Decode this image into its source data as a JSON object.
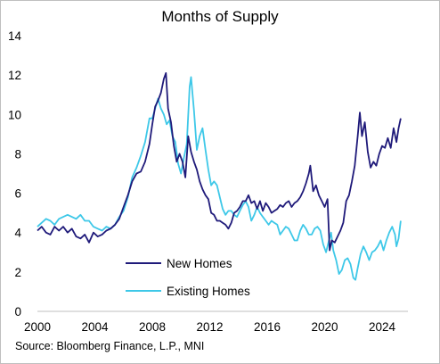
{
  "chart_data": {
    "type": "line",
    "title": "Months of Supply",
    "xlabel": "",
    "ylabel": "",
    "xlim": [
      2000,
      2025.8
    ],
    "ylim": [
      0,
      14
    ],
    "x_ticks": [
      2000,
      2004,
      2008,
      2012,
      2016,
      2020,
      2024
    ],
    "y_ticks": [
      0,
      2,
      4,
      6,
      8,
      10,
      12,
      14
    ],
    "grid": "none",
    "legend_position": "center-left, lower half",
    "source": "Source: Bloomberg Finance, L.P., MNI",
    "series": [
      {
        "name": "New Homes",
        "color": "#1f1a7a",
        "points": [
          [
            2000.0,
            4.1
          ],
          [
            2000.3,
            4.3
          ],
          [
            2000.6,
            4.0
          ],
          [
            2000.9,
            3.9
          ],
          [
            2001.2,
            4.3
          ],
          [
            2001.5,
            4.1
          ],
          [
            2001.8,
            4.3
          ],
          [
            2002.1,
            4.0
          ],
          [
            2002.4,
            4.2
          ],
          [
            2002.7,
            3.8
          ],
          [
            2003.0,
            3.7
          ],
          [
            2003.3,
            3.9
          ],
          [
            2003.6,
            3.5
          ],
          [
            2003.9,
            4.0
          ],
          [
            2004.2,
            3.8
          ],
          [
            2004.5,
            3.9
          ],
          [
            2004.8,
            4.1
          ],
          [
            2005.1,
            4.2
          ],
          [
            2005.4,
            4.4
          ],
          [
            2005.7,
            4.7
          ],
          [
            2006.0,
            5.3
          ],
          [
            2006.3,
            5.9
          ],
          [
            2006.6,
            6.6
          ],
          [
            2006.9,
            7.0
          ],
          [
            2007.2,
            7.1
          ],
          [
            2007.5,
            7.6
          ],
          [
            2007.8,
            8.5
          ],
          [
            2008.0,
            9.5
          ],
          [
            2008.2,
            10.4
          ],
          [
            2008.4,
            10.7
          ],
          [
            2008.6,
            11.1
          ],
          [
            2008.8,
            11.8
          ],
          [
            2008.95,
            12.1
          ],
          [
            2009.1,
            10.3
          ],
          [
            2009.3,
            9.6
          ],
          [
            2009.5,
            8.4
          ],
          [
            2009.7,
            7.6
          ],
          [
            2009.9,
            8.0
          ],
          [
            2010.1,
            7.6
          ],
          [
            2010.3,
            6.8
          ],
          [
            2010.5,
            8.9
          ],
          [
            2010.7,
            8.1
          ],
          [
            2010.9,
            7.6
          ],
          [
            2011.1,
            7.2
          ],
          [
            2011.3,
            6.6
          ],
          [
            2011.5,
            6.2
          ],
          [
            2011.7,
            5.9
          ],
          [
            2011.9,
            5.7
          ],
          [
            2012.1,
            5.0
          ],
          [
            2012.3,
            4.9
          ],
          [
            2012.5,
            4.6
          ],
          [
            2012.7,
            4.6
          ],
          [
            2012.9,
            4.5
          ],
          [
            2013.1,
            4.4
          ],
          [
            2013.3,
            4.2
          ],
          [
            2013.5,
            4.5
          ],
          [
            2013.7,
            5.0
          ],
          [
            2013.9,
            5.1
          ],
          [
            2014.1,
            5.3
          ],
          [
            2014.3,
            5.6
          ],
          [
            2014.5,
            5.6
          ],
          [
            2014.7,
            5.9
          ],
          [
            2014.9,
            5.5
          ],
          [
            2015.1,
            5.6
          ],
          [
            2015.3,
            5.2
          ],
          [
            2015.5,
            5.6
          ],
          [
            2015.7,
            5.1
          ],
          [
            2015.9,
            5.5
          ],
          [
            2016.1,
            5.3
          ],
          [
            2016.3,
            5.0
          ],
          [
            2016.5,
            5.1
          ],
          [
            2016.7,
            5.2
          ],
          [
            2016.9,
            5.4
          ],
          [
            2017.1,
            5.3
          ],
          [
            2017.3,
            5.5
          ],
          [
            2017.5,
            5.6
          ],
          [
            2017.7,
            5.3
          ],
          [
            2017.9,
            5.5
          ],
          [
            2018.1,
            5.6
          ],
          [
            2018.3,
            5.8
          ],
          [
            2018.5,
            6.1
          ],
          [
            2018.7,
            6.5
          ],
          [
            2018.9,
            7.0
          ],
          [
            2019.0,
            7.4
          ],
          [
            2019.2,
            6.1
          ],
          [
            2019.4,
            6.4
          ],
          [
            2019.6,
            5.9
          ],
          [
            2019.8,
            5.6
          ],
          [
            2020.0,
            5.3
          ],
          [
            2020.2,
            5.7
          ],
          [
            2020.35,
            3.1
          ],
          [
            2020.5,
            3.6
          ],
          [
            2020.7,
            3.5
          ],
          [
            2020.9,
            3.8
          ],
          [
            2021.1,
            4.1
          ],
          [
            2021.3,
            4.5
          ],
          [
            2021.5,
            5.6
          ],
          [
            2021.7,
            5.9
          ],
          [
            2021.9,
            6.6
          ],
          [
            2022.1,
            7.4
          ],
          [
            2022.3,
            8.9
          ],
          [
            2022.45,
            10.1
          ],
          [
            2022.6,
            8.9
          ],
          [
            2022.8,
            9.6
          ],
          [
            2023.0,
            8.1
          ],
          [
            2023.2,
            7.3
          ],
          [
            2023.4,
            7.6
          ],
          [
            2023.6,
            7.4
          ],
          [
            2023.8,
            8.0
          ],
          [
            2024.0,
            8.4
          ],
          [
            2024.2,
            8.3
          ],
          [
            2024.4,
            8.8
          ],
          [
            2024.6,
            8.3
          ],
          [
            2024.8,
            9.3
          ],
          [
            2025.0,
            8.6
          ],
          [
            2025.15,
            9.3
          ],
          [
            2025.3,
            9.8
          ]
        ]
      },
      {
        "name": "Existing Homes",
        "color": "#3ec8e8",
        "points": [
          [
            2000.0,
            4.3
          ],
          [
            2000.3,
            4.5
          ],
          [
            2000.6,
            4.7
          ],
          [
            2000.9,
            4.6
          ],
          [
            2001.2,
            4.4
          ],
          [
            2001.5,
            4.7
          ],
          [
            2001.8,
            4.8
          ],
          [
            2002.1,
            4.9
          ],
          [
            2002.4,
            4.8
          ],
          [
            2002.7,
            4.7
          ],
          [
            2003.0,
            4.9
          ],
          [
            2003.3,
            4.6
          ],
          [
            2003.6,
            4.6
          ],
          [
            2003.9,
            4.3
          ],
          [
            2004.2,
            4.2
          ],
          [
            2004.5,
            4.1
          ],
          [
            2004.8,
            4.3
          ],
          [
            2005.1,
            4.2
          ],
          [
            2005.4,
            4.4
          ],
          [
            2005.7,
            4.8
          ],
          [
            2006.0,
            5.1
          ],
          [
            2006.3,
            5.8
          ],
          [
            2006.6,
            6.8
          ],
          [
            2006.9,
            7.3
          ],
          [
            2007.2,
            7.9
          ],
          [
            2007.5,
            8.6
          ],
          [
            2007.8,
            9.8
          ],
          [
            2008.0,
            9.8
          ],
          [
            2008.2,
            10.3
          ],
          [
            2008.4,
            10.8
          ],
          [
            2008.6,
            10.3
          ],
          [
            2008.8,
            10.0
          ],
          [
            2009.0,
            9.5
          ],
          [
            2009.2,
            9.7
          ],
          [
            2009.4,
            8.9
          ],
          [
            2009.6,
            8.6
          ],
          [
            2009.8,
            7.5
          ],
          [
            2010.0,
            7.0
          ],
          [
            2010.2,
            7.8
          ],
          [
            2010.4,
            8.5
          ],
          [
            2010.6,
            11.4
          ],
          [
            2010.7,
            11.9
          ],
          [
            2010.9,
            10.2
          ],
          [
            2011.1,
            8.2
          ],
          [
            2011.3,
            8.9
          ],
          [
            2011.5,
            9.3
          ],
          [
            2011.7,
            8.2
          ],
          [
            2011.9,
            7.2
          ],
          [
            2012.1,
            6.4
          ],
          [
            2012.3,
            6.6
          ],
          [
            2012.5,
            6.4
          ],
          [
            2012.7,
            5.8
          ],
          [
            2012.9,
            5.2
          ],
          [
            2013.1,
            4.9
          ],
          [
            2013.3,
            5.1
          ],
          [
            2013.5,
            5.1
          ],
          [
            2013.7,
            4.9
          ],
          [
            2013.9,
            4.8
          ],
          [
            2014.1,
            5.1
          ],
          [
            2014.3,
            5.4
          ],
          [
            2014.5,
            5.6
          ],
          [
            2014.7,
            5.3
          ],
          [
            2014.9,
            4.6
          ],
          [
            2015.1,
            4.9
          ],
          [
            2015.3,
            5.3
          ],
          [
            2015.5,
            5.0
          ],
          [
            2015.7,
            4.8
          ],
          [
            2015.9,
            4.6
          ],
          [
            2016.1,
            4.4
          ],
          [
            2016.3,
            4.6
          ],
          [
            2016.5,
            4.5
          ],
          [
            2016.7,
            4.4
          ],
          [
            2016.9,
            3.9
          ],
          [
            2017.1,
            4.1
          ],
          [
            2017.3,
            4.3
          ],
          [
            2017.5,
            4.2
          ],
          [
            2017.7,
            3.9
          ],
          [
            2017.9,
            3.6
          ],
          [
            2018.1,
            3.6
          ],
          [
            2018.3,
            4.1
          ],
          [
            2018.5,
            4.4
          ],
          [
            2018.7,
            4.2
          ],
          [
            2018.9,
            3.9
          ],
          [
            2019.1,
            3.9
          ],
          [
            2019.3,
            4.2
          ],
          [
            2019.5,
            4.3
          ],
          [
            2019.7,
            4.1
          ],
          [
            2019.9,
            3.4
          ],
          [
            2020.1,
            3.0
          ],
          [
            2020.3,
            3.6
          ],
          [
            2020.45,
            4.0
          ],
          [
            2020.6,
            3.1
          ],
          [
            2020.8,
            2.6
          ],
          [
            2021.0,
            1.9
          ],
          [
            2021.2,
            2.1
          ],
          [
            2021.4,
            2.6
          ],
          [
            2021.6,
            2.7
          ],
          [
            2021.8,
            2.4
          ],
          [
            2022.0,
            1.7
          ],
          [
            2022.15,
            1.6
          ],
          [
            2022.3,
            2.2
          ],
          [
            2022.5,
            2.9
          ],
          [
            2022.7,
            3.3
          ],
          [
            2022.9,
            3.0
          ],
          [
            2023.1,
            2.6
          ],
          [
            2023.3,
            3.0
          ],
          [
            2023.5,
            3.1
          ],
          [
            2023.7,
            3.3
          ],
          [
            2023.9,
            3.6
          ],
          [
            2024.1,
            3.1
          ],
          [
            2024.3,
            3.6
          ],
          [
            2024.5,
            4.0
          ],
          [
            2024.7,
            4.3
          ],
          [
            2024.9,
            3.9
          ],
          [
            2025.0,
            3.3
          ],
          [
            2025.15,
            3.7
          ],
          [
            2025.3,
            4.6
          ]
        ]
      }
    ]
  }
}
